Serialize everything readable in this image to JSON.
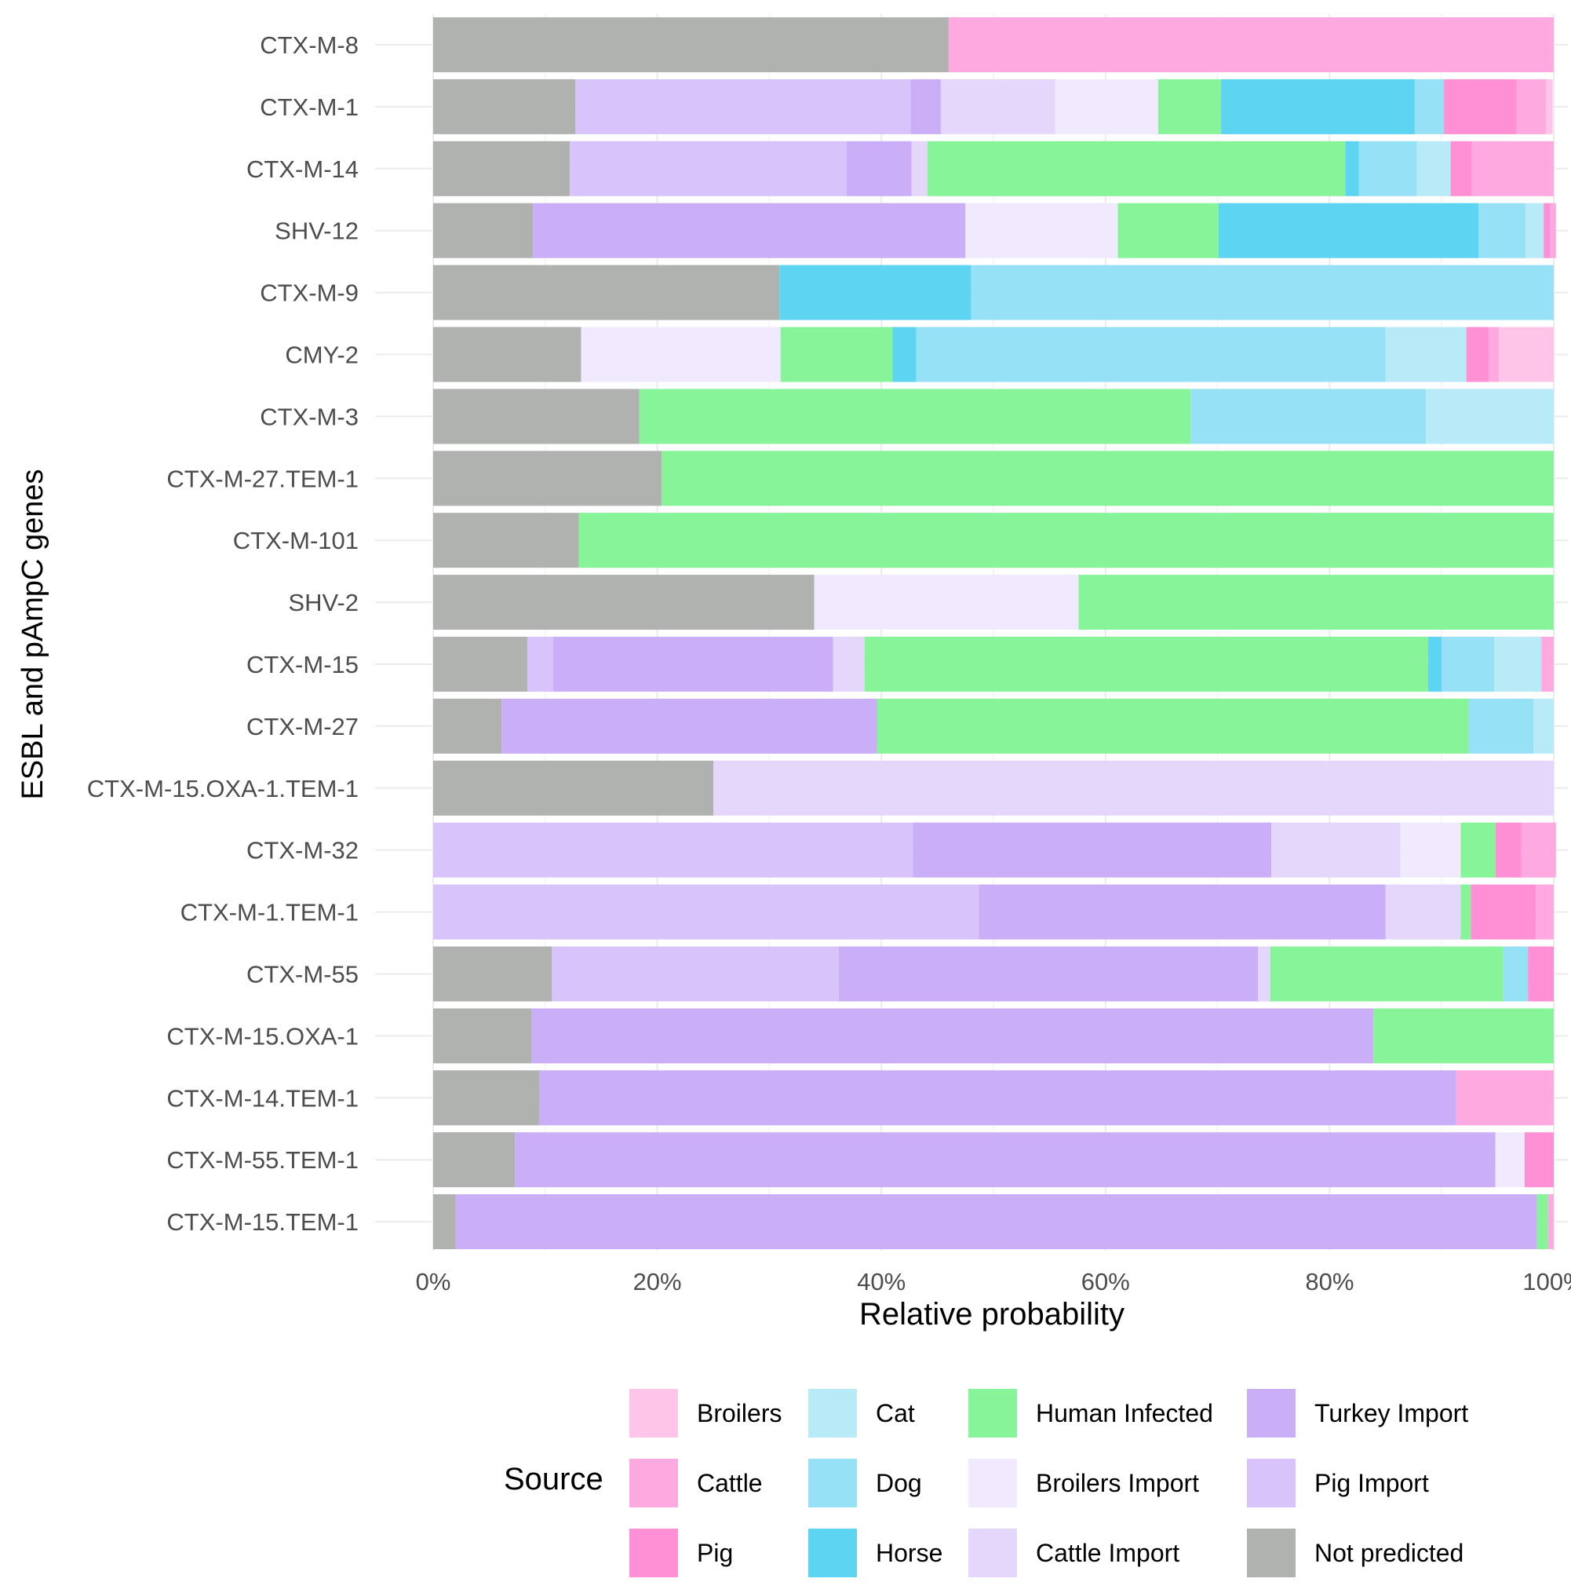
{
  "chart_data": {
    "type": "bar",
    "orientation": "horizontal",
    "stacked": true,
    "xlabel": "Relative probability",
    "ylabel": "ESBL and pAmpC genes",
    "xlim": [
      0,
      100
    ],
    "x_ticks": [
      "0%",
      "20%",
      "40%",
      "60%",
      "80%",
      "100%"
    ],
    "grid": true,
    "legend_title": "Source",
    "legend_position": "bottom",
    "categories": [
      "CTX-M-8",
      "CTX-M-1",
      "CTX-M-14",
      "SHV-12",
      "CTX-M-9",
      "CMY-2",
      "CTX-M-3",
      "CTX-M-27.TEM-1",
      "CTX-M-101",
      "SHV-2",
      "CTX-M-15",
      "CTX-M-27",
      "CTX-M-15.OXA-1.TEM-1",
      "CTX-M-32",
      "CTX-M-1.TEM-1",
      "CTX-M-55",
      "CTX-M-15.OXA-1",
      "CTX-M-14.TEM-1",
      "CTX-M-55.TEM-1",
      "CTX-M-15.TEM-1"
    ],
    "series": [
      {
        "name": "Not predicted",
        "color": "#AFB2AE",
        "values": [
          46.0,
          12.7,
          12.2,
          8.9,
          30.9,
          13.2,
          18.4,
          20.4,
          13.0,
          34.0,
          8.4,
          6.1,
          25.0,
          0,
          0,
          10.6,
          8.8,
          9.5,
          7.3,
          2.0
        ]
      },
      {
        "name": "Pig Import",
        "color": "#D8C4FA",
        "values": [
          0,
          29.9,
          24.7,
          0,
          0,
          0,
          0,
          0,
          0,
          0,
          2.3,
          0,
          0,
          42.8,
          48.7,
          25.6,
          0,
          0,
          0,
          0
        ]
      },
      {
        "name": "Turkey Import",
        "color": "#CAAFF8",
        "values": [
          0,
          2.7,
          5.8,
          38.6,
          0,
          0,
          0,
          0,
          0,
          0,
          25.0,
          33.5,
          0,
          32.0,
          36.3,
          37.4,
          75.1,
          81.8,
          87.5,
          96.5
        ]
      },
      {
        "name": "Cattle Import",
        "color": "#E4D7FB",
        "values": [
          0,
          10.2,
          1.4,
          0,
          0,
          0,
          0,
          0,
          0,
          0,
          2.8,
          0,
          75.0,
          11.5,
          6.7,
          1.1,
          0,
          0,
          0,
          0
        ]
      },
      {
        "name": "Broilers Import",
        "color": "#F1E9FD",
        "values": [
          0,
          9.2,
          0,
          13.6,
          0,
          17.8,
          0,
          0,
          0,
          23.6,
          0,
          0,
          0,
          5.4,
          0,
          0,
          0,
          0,
          2.6,
          0
        ]
      },
      {
        "name": "Human Infected",
        "color": "#88F49A",
        "values": [
          0,
          5.6,
          37.3,
          9.0,
          0,
          10.0,
          49.2,
          79.6,
          87.0,
          42.4,
          50.3,
          52.8,
          0,
          3.1,
          0.9,
          20.8,
          16.1,
          0,
          0,
          1.0
        ]
      },
      {
        "name": "Horse",
        "color": "#5DD4F2",
        "values": [
          0,
          17.3,
          1.2,
          23.2,
          17.1,
          2.1,
          0,
          0,
          0,
          0,
          1.2,
          0,
          0,
          0,
          0,
          0,
          0,
          0,
          0,
          0
        ]
      },
      {
        "name": "Dog",
        "color": "#96E1F6",
        "values": [
          0,
          2.6,
          5.2,
          4.2,
          52.0,
          41.9,
          21.0,
          0,
          0,
          0,
          4.7,
          5.8,
          0,
          0,
          0,
          2.2,
          0,
          0,
          0,
          0
        ]
      },
      {
        "name": "Cat",
        "color": "#B8EAF8",
        "values": [
          0,
          0,
          3.0,
          1.6,
          0,
          7.2,
          11.4,
          0,
          0,
          0,
          4.2,
          1.8,
          0,
          0,
          0,
          0,
          0,
          0,
          0,
          0
        ]
      },
      {
        "name": "Pig",
        "color": "#FF90D5",
        "values": [
          0,
          6.5,
          1.9,
          0.6,
          0,
          2.0,
          0,
          0,
          0,
          0,
          0,
          0,
          0,
          2.3,
          5.8,
          2.3,
          0,
          0,
          2.6,
          0
        ]
      },
      {
        "name": "Cattle",
        "color": "#FEA9E0",
        "values": [
          54.0,
          2.6,
          7.3,
          0.5,
          0,
          0.9,
          0,
          0,
          0,
          0,
          1.1,
          0,
          0,
          3.1,
          1.6,
          0,
          0,
          8.7,
          0,
          0.5
        ]
      },
      {
        "name": "Broilers",
        "color": "#FFC5E9",
        "values": [
          0,
          0.6,
          0,
          0,
          0,
          4.9,
          0,
          0,
          0,
          0,
          0,
          0,
          0,
          0,
          0,
          0,
          0,
          0,
          0,
          0
        ]
      }
    ],
    "legend_order": [
      "Broilers",
      "Cattle",
      "Pig",
      "Cat",
      "Dog",
      "Horse",
      "Human Infected",
      "Broilers Import",
      "Cattle Import",
      "Turkey Import",
      "Pig Import",
      "Not predicted"
    ]
  }
}
